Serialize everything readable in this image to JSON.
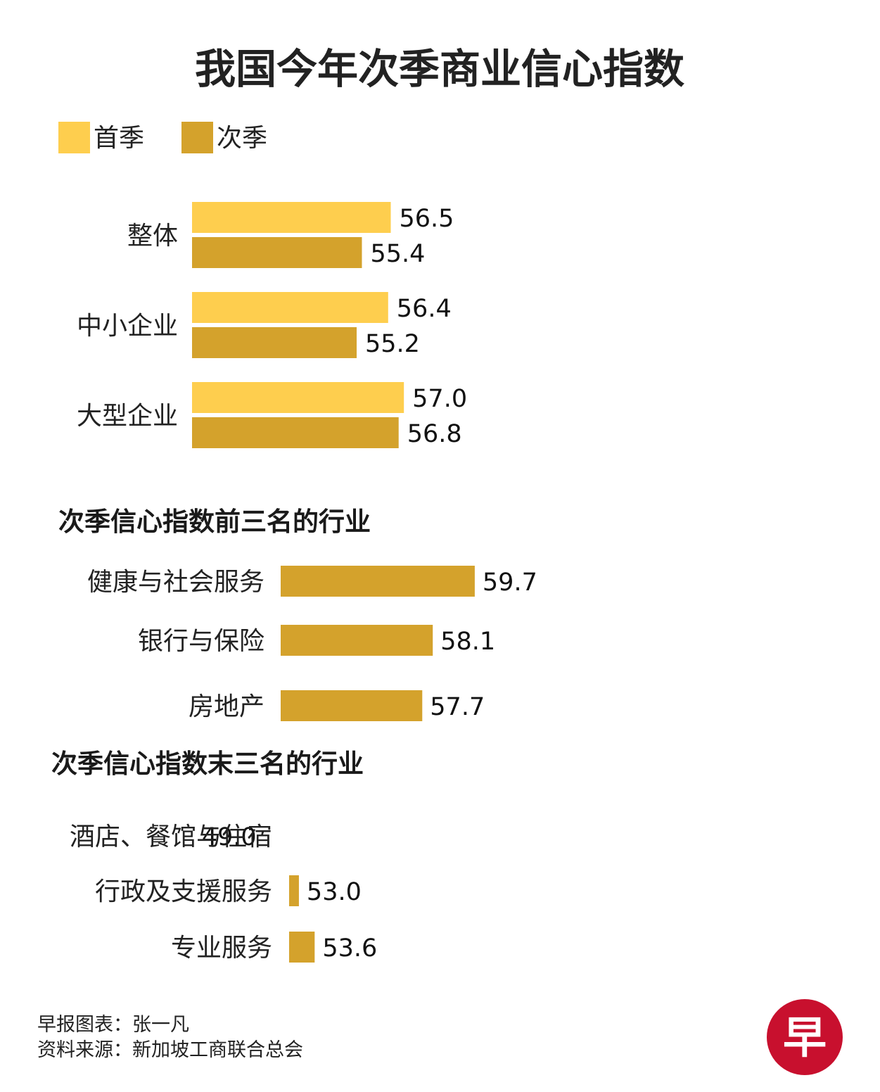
{
  "colors": {
    "q1": "#FECE4E",
    "q2": "#D4A22C",
    "logo": "#C8102E"
  },
  "chart_data": [
    {
      "type": "bar",
      "orientation": "horizontal",
      "title": "我国今年次季商业信心指数",
      "legend": [
        "首季",
        "次季"
      ],
      "categories": [
        "整体",
        "中小企业",
        "大型企业"
      ],
      "series": [
        {
          "name": "首季",
          "values": [
            56.5,
            56.4,
            57.0
          ],
          "labels": [
            "56.5",
            "56.4",
            "57.0"
          ]
        },
        {
          "name": "次季",
          "values": [
            55.4,
            55.2,
            56.8
          ],
          "labels": [
            "55.4",
            "55.2",
            "56.8"
          ]
        }
      ]
    },
    {
      "type": "bar",
      "orientation": "horizontal",
      "title": "次季信心指数前三名的行业",
      "categories": [
        "健康与社会服务",
        "银行与保险",
        "房地产"
      ],
      "values": [
        59.7,
        58.1,
        57.7
      ],
      "labels": [
        "59.7",
        "58.1",
        "57.7"
      ]
    },
    {
      "type": "bar",
      "orientation": "horizontal",
      "title": "次季信心指数末三名的行业",
      "categories": [
        "酒店、餐馆与住宿",
        "行政及支援服务",
        "专业服务"
      ],
      "values": [
        49.0,
        53.0,
        53.6
      ],
      "labels": [
        "49.0",
        "53.0",
        "53.6"
      ]
    }
  ],
  "footer": {
    "credit": "早报图表：张一凡",
    "source": "资料来源：新加坡工商联合总会"
  },
  "logo": {
    "glyph": "早"
  }
}
